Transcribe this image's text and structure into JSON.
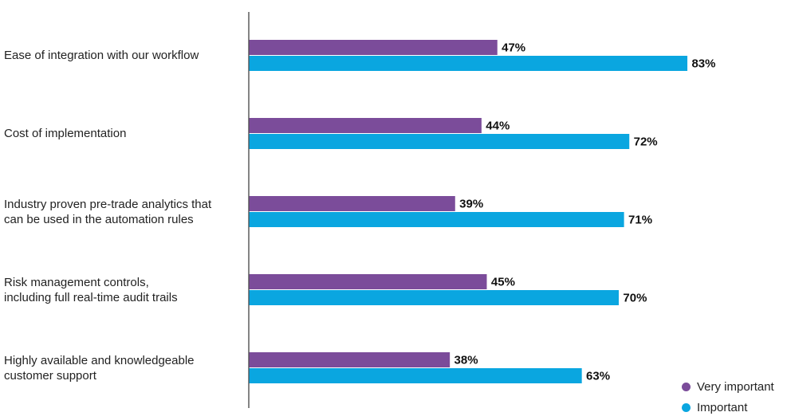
{
  "chart_data": {
    "type": "bar",
    "orientation": "horizontal",
    "title": "",
    "xlabel": "",
    "ylabel": "",
    "xlim": [
      0,
      100
    ],
    "grid": false,
    "legend_position": "bottom-right",
    "categories": [
      "Ease of integration with our workflow",
      "Cost of implementation",
      "Industry proven pre-trade analytics that\ncan be used in the automation rules",
      "Risk management controls,\nincluding full real-time audit trails",
      "Highly available and knowledgeable\ncustomer support"
    ],
    "series": [
      {
        "name": "Very important",
        "color": "#7b4c9a",
        "values": [
          47,
          44,
          39,
          45,
          38
        ],
        "labels": [
          "47%",
          "44%",
          "39%",
          "45%",
          "38%"
        ]
      },
      {
        "name": "Important",
        "color": "#0aa6e0",
        "values": [
          83,
          72,
          71,
          70,
          63
        ],
        "labels": [
          "83%",
          "72%",
          "71%",
          "70%",
          "63%"
        ]
      }
    ]
  }
}
